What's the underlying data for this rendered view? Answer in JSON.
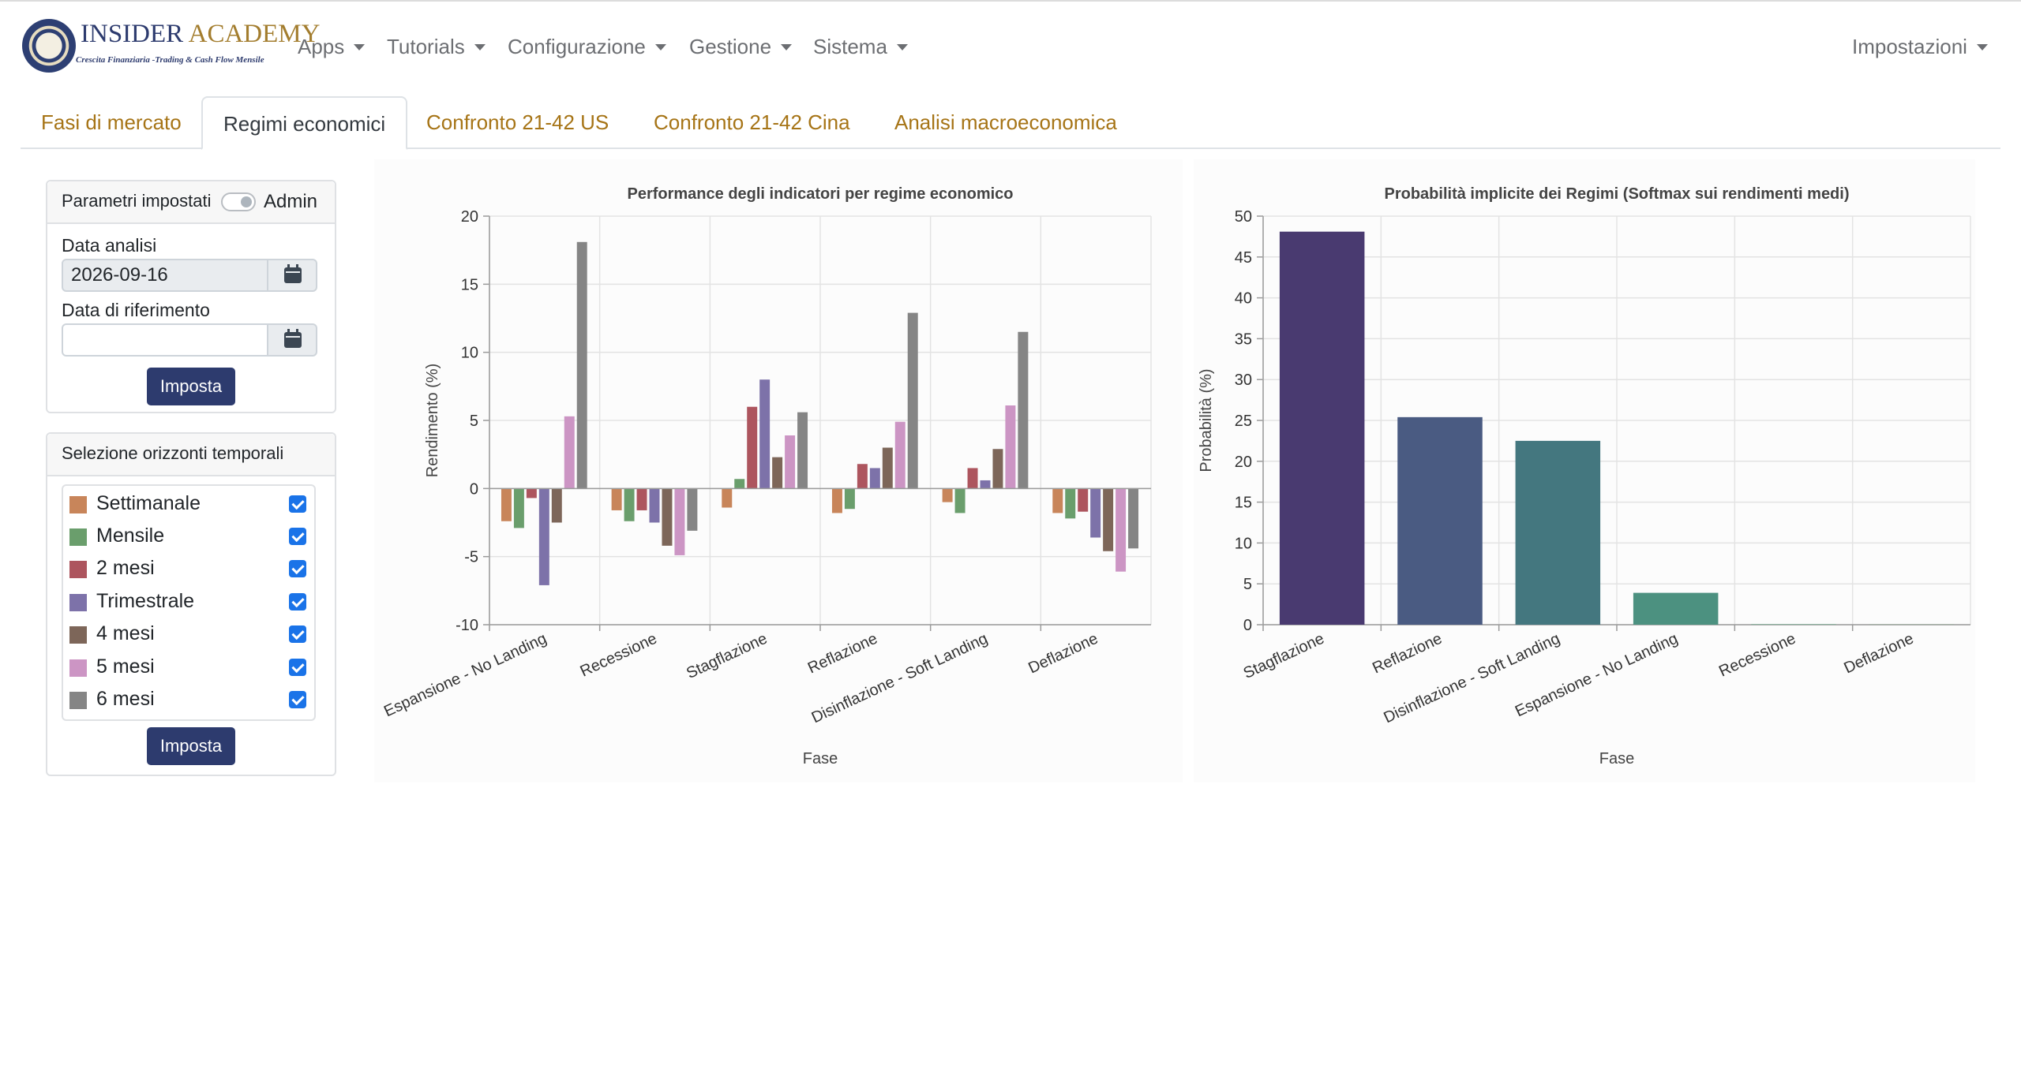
{
  "brand": {
    "name_part1": "INSIDER",
    "name_part2": "ACADEMY",
    "tagline": "Crescita Finanziaria -Trading & Cash Flow Mensile"
  },
  "nav": {
    "items": [
      "Apps",
      "Tutorials",
      "Configurazione",
      "Gestione",
      "Sistema"
    ],
    "right": "Impostazioni"
  },
  "tabs": [
    "Fasi di mercato",
    "Regimi economici",
    "Confronto 21-42 US",
    "Confronto 21-42 Cina",
    "Analisi macroeconomica"
  ],
  "active_tab": "Regimi economici",
  "params": {
    "header": "Parametri impostati",
    "toggle_label": "Admin",
    "analysis_date_label": "Data analisi",
    "analysis_date_value": "2026-09-16",
    "reference_date_label": "Data di riferimento",
    "reference_date_value": "",
    "submit_label": "Imposta"
  },
  "horizons": {
    "header": "Selezione orizzonti temporali",
    "items": [
      {
        "label": "Settimanale",
        "color": "#c8855a",
        "checked": true
      },
      {
        "label": "Mensile",
        "color": "#6a9e6c",
        "checked": true
      },
      {
        "label": "2 mesi",
        "color": "#ad555e",
        "checked": true
      },
      {
        "label": "Trimestrale",
        "color": "#7d72a9",
        "checked": true
      },
      {
        "label": "4 mesi",
        "color": "#7d6659",
        "checked": true
      },
      {
        "label": "5 mesi",
        "color": "#cc95c4",
        "checked": true
      },
      {
        "label": "6 mesi",
        "color": "#858585",
        "checked": true
      }
    ],
    "submit_label": "Imposta"
  },
  "chart_data": [
    {
      "type": "bar",
      "title": "Performance degli indicatori per regime economico",
      "xlabel": "Fase",
      "ylabel": "Rendimento (%)",
      "ylim": [
        -10,
        20
      ],
      "yticks": [
        -10,
        -5,
        0,
        5,
        10,
        15,
        20
      ],
      "grid": true,
      "categories": [
        "Espansione - No Landing",
        "Recessione",
        "Stagflazione",
        "Reflazione",
        "Disinflazione - Soft Landing",
        "Deflazione"
      ],
      "series": [
        {
          "name": "Settimanale",
          "color": "#c8855a",
          "values": [
            -2.4,
            -1.6,
            -1.4,
            -1.8,
            -1.0,
            -1.8
          ]
        },
        {
          "name": "Mensile",
          "color": "#6a9e6c",
          "values": [
            -2.9,
            -2.4,
            0.7,
            -1.5,
            -1.8,
            -2.2
          ]
        },
        {
          "name": "2 mesi",
          "color": "#ad555e",
          "values": [
            -0.7,
            -1.6,
            6.0,
            1.8,
            1.5,
            -1.7
          ]
        },
        {
          "name": "Trimestrale",
          "color": "#7d72a9",
          "values": [
            -7.1,
            -2.5,
            8.0,
            1.5,
            0.6,
            -3.6
          ]
        },
        {
          "name": "4 mesi",
          "color": "#7d6659",
          "values": [
            -2.5,
            -4.2,
            2.3,
            3.0,
            2.9,
            -4.6
          ]
        },
        {
          "name": "5 mesi",
          "color": "#cc95c4",
          "values": [
            5.3,
            -4.9,
            3.9,
            4.9,
            6.1,
            -6.1
          ]
        },
        {
          "name": "6 mesi",
          "color": "#858585",
          "values": [
            18.1,
            -3.1,
            5.6,
            12.9,
            11.5,
            -4.4
          ]
        }
      ]
    },
    {
      "type": "bar",
      "title": "Probabilità implicite dei Regimi (Softmax sui rendimenti medi)",
      "xlabel": "Fase",
      "ylabel": "Probabilità (%)",
      "ylim": [
        0,
        50
      ],
      "yticks": [
        0,
        5,
        10,
        15,
        20,
        25,
        30,
        35,
        40,
        45,
        50
      ],
      "grid": true,
      "categories": [
        "Stagflazione",
        "Reflazione",
        "Disinflazione - Soft Landing",
        "Espansione - No Landing",
        "Recessione",
        "Deflazione"
      ],
      "values": [
        48.1,
        25.4,
        22.5,
        3.9,
        0.05,
        0.02
      ],
      "colors": [
        "#493a70",
        "#4a5b82",
        "#44777f",
        "#4c9180",
        "#5aa57d",
        "#6fb57a"
      ]
    }
  ]
}
